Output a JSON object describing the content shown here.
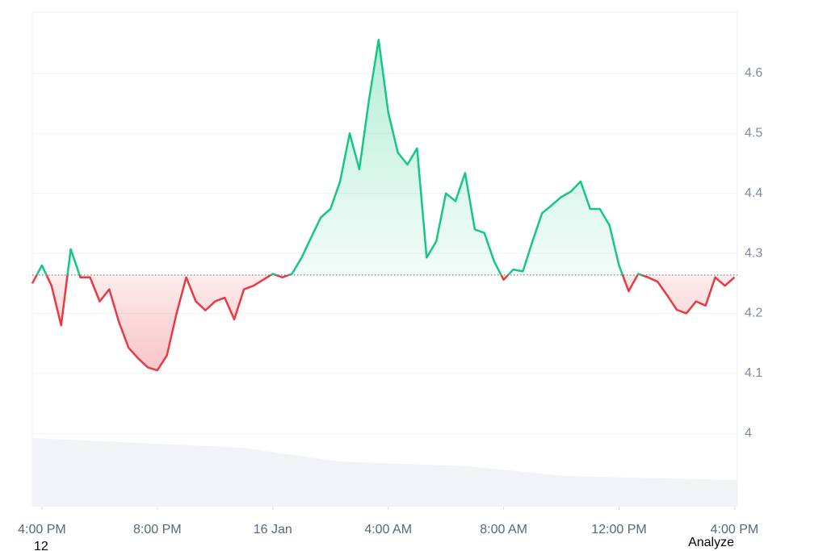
{
  "chart_data": {
    "type": "line",
    "values": [
      4.25,
      4.28,
      4.246,
      4.18,
      4.307,
      4.26,
      4.26,
      4.22,
      4.24,
      4.186,
      4.143,
      4.125,
      4.11,
      4.105,
      4.13,
      4.2,
      4.26,
      4.22,
      4.205,
      4.22,
      4.226,
      4.19,
      4.24,
      4.246,
      4.256,
      4.266,
      4.26,
      4.266,
      4.293,
      4.327,
      4.36,
      4.374,
      4.42,
      4.5,
      4.44,
      4.555,
      4.656,
      4.535,
      4.468,
      4.448,
      4.475,
      4.293,
      4.32,
      4.4,
      4.387,
      4.434,
      4.34,
      4.334,
      4.287,
      4.256,
      4.273,
      4.27,
      4.32,
      4.367,
      4.38,
      4.394,
      4.403,
      4.42,
      4.374,
      4.374,
      4.347,
      4.28,
      4.237,
      4.266,
      4.26,
      4.253,
      4.23,
      4.206,
      4.2,
      4.22,
      4.213,
      4.26,
      4.246,
      4.26
    ],
    "baseline": 4.264,
    "up_color": "#16c784",
    "down_color": "#ea3943",
    "xlim": [
      0,
      73.3
    ],
    "xticks": [
      {
        "value": 1,
        "label": "4:00 PM"
      },
      {
        "value": 13,
        "label": "8:00 PM"
      },
      {
        "value": 25,
        "label": "16 Jan"
      },
      {
        "value": 37,
        "label": "4:00 AM"
      },
      {
        "value": 49,
        "label": "8:00 AM"
      },
      {
        "value": 61,
        "label": "12:00 PM"
      },
      {
        "value": 73,
        "label": "4:00 PM"
      }
    ],
    "ylim": [
      3.878,
      4.702
    ],
    "yticks": [
      4.0,
      4.1,
      4.2,
      4.3,
      4.4,
      4.5,
      4.6
    ],
    "grid": true
  },
  "footer_left": "12",
  "footer_right": "Analyze"
}
